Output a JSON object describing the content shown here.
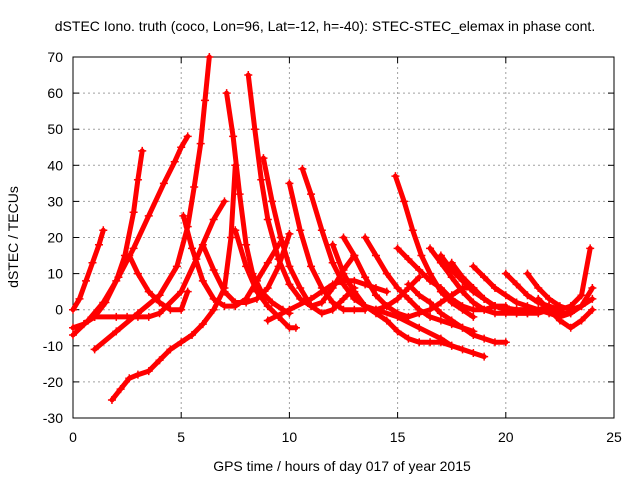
{
  "chart_data": {
    "type": "line",
    "title": "dSTEC Iono. truth (coco, Lon=96, Lat=-12, h=-40): STEC-STEC_elemax in phase cont.",
    "xlabel": "GPS time / hours of day 017 of year 2015",
    "ylabel": "dSTEC  / TECUs",
    "xlim": [
      0,
      25
    ],
    "ylim": [
      -30,
      70
    ],
    "xticks": [
      0,
      5,
      10,
      15,
      20,
      25
    ],
    "yticks": [
      -30,
      -20,
      -10,
      0,
      10,
      20,
      30,
      40,
      50,
      60,
      70
    ],
    "grid": true,
    "legend": "none",
    "series_color": "#ff0000",
    "marker": "plus",
    "series": [
      {
        "x": [
          0,
          0.3,
          0.6,
          0.9,
          1.2,
          1.4
        ],
        "y": [
          0,
          3,
          8,
          13,
          18,
          22
        ]
      },
      {
        "x": [
          0,
          0.5,
          1.0,
          1.5,
          2.0,
          2.4,
          2.8,
          3.0,
          3.2
        ],
        "y": [
          -5,
          -4,
          -2,
          2,
          8,
          15,
          27,
          36,
          44
        ]
      },
      {
        "x": [
          0,
          0.7,
          1.4,
          2.1,
          2.8,
          3.5,
          4.2,
          4.7,
          5.0,
          5.3
        ],
        "y": [
          -7,
          -3,
          2,
          9,
          17,
          26,
          35,
          41,
          45,
          48
        ]
      },
      {
        "x": [
          1.0,
          2.0,
          3.0,
          4.0,
          4.8,
          5.3,
          5.6,
          5.9,
          6.1,
          6.3
        ],
        "y": [
          -11,
          -6,
          -1,
          4,
          12,
          23,
          34,
          46,
          58,
          70
        ]
      },
      {
        "x": [
          1.8,
          2.2,
          2.6,
          3.0,
          3.5,
          4.0,
          4.5,
          5.0,
          5.5,
          6.0,
          6.5,
          7.0,
          7.3,
          7.5
        ],
        "y": [
          -25,
          -22,
          -19,
          -18,
          -17,
          -14,
          -11,
          -9,
          -7,
          -4,
          0,
          6,
          20,
          40
        ]
      },
      {
        "x": [
          2.6,
          3.0,
          3.5,
          4.0,
          4.5,
          5.0,
          5.3
        ],
        "y": [
          15,
          10,
          5,
          2,
          0,
          0,
          5
        ]
      },
      {
        "x": [
          1.0,
          2.0,
          2.5,
          3.0,
          3.5,
          4.0,
          5.0,
          5.7,
          6.5,
          7.0
        ],
        "y": [
          -2,
          -2,
          -2,
          -2,
          -2,
          -1,
          5,
          14,
          25,
          30
        ]
      },
      {
        "x": [
          5.1,
          5.5,
          6.0,
          6.5,
          7.0,
          7.5,
          8.0,
          8.5,
          9.0,
          9.5
        ],
        "y": [
          26,
          17,
          8,
          3,
          1,
          1,
          3,
          8,
          13,
          18
        ]
      },
      {
        "x": [
          6.0,
          6.5,
          7.0,
          7.5,
          8.0,
          8.5,
          9.0,
          9.5,
          10.0
        ],
        "y": [
          18,
          11,
          5,
          2,
          2,
          3,
          6,
          12,
          21
        ]
      },
      {
        "x": [
          7.1,
          7.4,
          7.7,
          8.0,
          8.3,
          8.7,
          9.2,
          9.7,
          10.0
        ],
        "y": [
          60,
          48,
          32,
          18,
          10,
          5,
          2,
          0,
          -1
        ]
      },
      {
        "x": [
          7.5,
          8.0,
          8.5,
          9.0,
          9.5,
          10.0,
          10.3
        ],
        "y": [
          22,
          12,
          5,
          1,
          -2,
          -5,
          -5
        ]
      },
      {
        "x": [
          8.1,
          8.4,
          8.7,
          9.0,
          9.5,
          10.0,
          10.5,
          11.0,
          11.5,
          12.0,
          12.5,
          13.0
        ],
        "y": [
          65,
          50,
          36,
          25,
          14,
          7,
          3,
          1,
          2,
          6,
          11,
          15
        ]
      },
      {
        "x": [
          8.8,
          9.2,
          9.6,
          10.0,
          10.5,
          11.0,
          11.5,
          12.0,
          12.5,
          13.0
        ],
        "y": [
          42,
          30,
          20,
          12,
          6,
          1,
          -1,
          0,
          3,
          6
        ]
      },
      {
        "x": [
          10.0,
          10.5,
          11.0,
          11.5,
          12.0,
          12.5,
          13.0,
          13.5
        ],
        "y": [
          35,
          22,
          12,
          6,
          2,
          0,
          0,
          0
        ]
      },
      {
        "x": [
          10.6,
          11.0,
          11.5,
          12.0,
          12.5,
          13.0,
          13.5,
          14.0,
          14.5,
          15.0,
          15.5,
          16.0
        ],
        "y": [
          39,
          32,
          22,
          13,
          7,
          3,
          1,
          0,
          1,
          3,
          6,
          9
        ]
      },
      {
        "x": [
          9.0,
          10.0,
          11.0,
          11.5,
          12.0,
          12.5,
          13.0,
          13.5,
          14.0,
          14.5
        ],
        "y": [
          -3,
          0,
          3,
          5,
          7,
          8,
          8,
          7,
          6,
          5
        ]
      },
      {
        "x": [
          12.0,
          12.5,
          13.0,
          13.5,
          14.0,
          14.5,
          15.0,
          15.5,
          16.0,
          16.5,
          17.0,
          17.5
        ],
        "y": [
          18,
          10,
          5,
          1,
          -1,
          -3,
          -6,
          -8,
          -9,
          -9,
          -9,
          -10
        ]
      },
      {
        "x": [
          12.5,
          13.0,
          13.5,
          14.0,
          14.5,
          15.0,
          15.5,
          16.0,
          16.5,
          17.0,
          17.5,
          18.0,
          18.5
        ],
        "y": [
          20,
          15,
          9,
          4,
          1,
          -1,
          -2,
          -1,
          0,
          2,
          4,
          6,
          6
        ]
      },
      {
        "x": [
          13.5,
          14.0,
          14.5,
          15.0,
          15.5,
          16.0,
          16.5,
          17.0,
          17.5,
          18.0,
          18.5
        ],
        "y": [
          20,
          15,
          10,
          6,
          3,
          0,
          -2,
          -3,
          -4,
          -5,
          -6
        ]
      },
      {
        "x": [
          14.9,
          15.3,
          15.7,
          16.1,
          16.5,
          17.0,
          17.5,
          18.0,
          18.5
        ],
        "y": [
          37,
          30,
          22,
          15,
          10,
          5,
          2,
          0,
          -2
        ]
      },
      {
        "x": [
          15.0,
          15.5,
          16.0,
          16.5,
          17.0,
          17.5,
          18.0,
          18.5,
          19.0,
          19.5,
          20.0
        ],
        "y": [
          17,
          14,
          11,
          8,
          6,
          3,
          1,
          0,
          0,
          1,
          1
        ]
      },
      {
        "x": [
          15.5,
          16.0,
          16.5,
          17.0,
          17.5,
          18.0,
          18.5,
          19.0,
          19.5,
          20.0
        ],
        "y": [
          7,
          4,
          2,
          -1,
          -3,
          -5,
          -7,
          -8,
          -9,
          -9
        ]
      },
      {
        "x": [
          16.5,
          17.0,
          17.5,
          18.0,
          18.5,
          19.0,
          19.5,
          20.0,
          20.5,
          21.0
        ],
        "y": [
          17,
          13,
          9,
          5,
          2,
          0,
          -1,
          -1,
          -1,
          -1
        ]
      },
      {
        "x": [
          17.0,
          17.5,
          18.0,
          18.5,
          19.0,
          19.5,
          20.0,
          20.5,
          21.0,
          21.5,
          22.0
        ],
        "y": [
          15,
          11,
          8,
          5,
          3,
          1,
          0,
          -1,
          -1,
          -1,
          0
        ]
      },
      {
        "x": [
          17.5,
          18.0,
          18.5,
          19.0,
          19.5,
          20.0,
          20.5,
          21.0,
          21.5,
          22.0
        ],
        "y": [
          13,
          9,
          6,
          3,
          1,
          0,
          0,
          0,
          0,
          1
        ]
      },
      {
        "x": [
          14.0,
          15.0,
          16.0,
          17.0,
          17.5,
          18.0,
          18.5,
          19.0
        ],
        "y": [
          0,
          -2,
          -5,
          -8,
          -10,
          -11,
          -12,
          -13
        ]
      },
      {
        "x": [
          18.5,
          19.0,
          19.5,
          20.0,
          20.5,
          21.0,
          21.5,
          22.0,
          22.5,
          23.0
        ],
        "y": [
          12,
          9,
          6,
          4,
          2,
          1,
          0,
          0,
          -1,
          -1
        ]
      },
      {
        "x": [
          20.0,
          20.5,
          21.0,
          21.5,
          22.0,
          22.5,
          23.0,
          23.5,
          23.9
        ],
        "y": [
          10,
          7,
          4,
          2,
          1,
          0,
          1,
          4,
          17
        ]
      },
      {
        "x": [
          21.0,
          21.5,
          22.0,
          22.5,
          23.0,
          23.5,
          24.0
        ],
        "y": [
          10,
          6,
          3,
          1,
          0,
          1,
          3
        ]
      },
      {
        "x": [
          21.5,
          22.0,
          22.5,
          23.0,
          23.5,
          24.0
        ],
        "y": [
          3,
          0,
          -3,
          -5,
          -3,
          0
        ]
      },
      {
        "x": [
          19.5,
          20.5,
          21.5,
          22.0,
          22.5,
          23.0,
          23.5,
          24.0
        ],
        "y": [
          1,
          0,
          0,
          -1,
          -2,
          -1,
          1,
          6
        ]
      }
    ]
  }
}
